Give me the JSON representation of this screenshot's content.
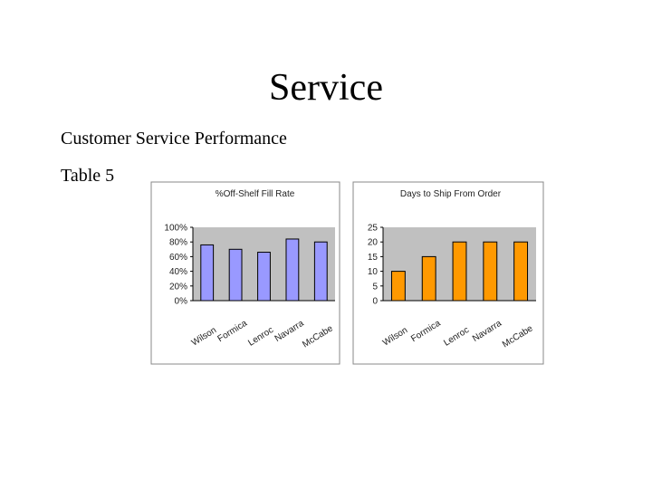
{
  "slide": {
    "title": "Service",
    "lines": [
      "Customer Service Performance",
      "Table 5"
    ]
  },
  "chart_data": [
    {
      "type": "bar",
      "title": "%Off-Shelf Fill Rate",
      "categories": [
        "Wilson",
        "Formica",
        "Lenroc",
        "Navarra",
        "McCabe"
      ],
      "values": [
        76,
        70,
        66,
        84,
        80
      ],
      "color": "#9999ff",
      "ylim": [
        0,
        100
      ],
      "yticks": [
        {
          "value": 0,
          "label": "0%"
        },
        {
          "value": 20,
          "label": "20%"
        },
        {
          "value": 40,
          "label": "40%"
        },
        {
          "value": 60,
          "label": "60%"
        },
        {
          "value": 80,
          "label": "80%"
        },
        {
          "value": 100,
          "label": "100%"
        }
      ],
      "grid": false
    },
    {
      "type": "bar",
      "title": "Days to Ship From Order",
      "categories": [
        "Wilson",
        "Formica",
        "Lenroc",
        "Navarra",
        "McCabe"
      ],
      "values": [
        10,
        15,
        20,
        20,
        20
      ],
      "color": "#ff9900",
      "ylim": [
        0,
        25
      ],
      "yticks": [
        0,
        5,
        10,
        15,
        20,
        25
      ],
      "grid": false
    }
  ]
}
